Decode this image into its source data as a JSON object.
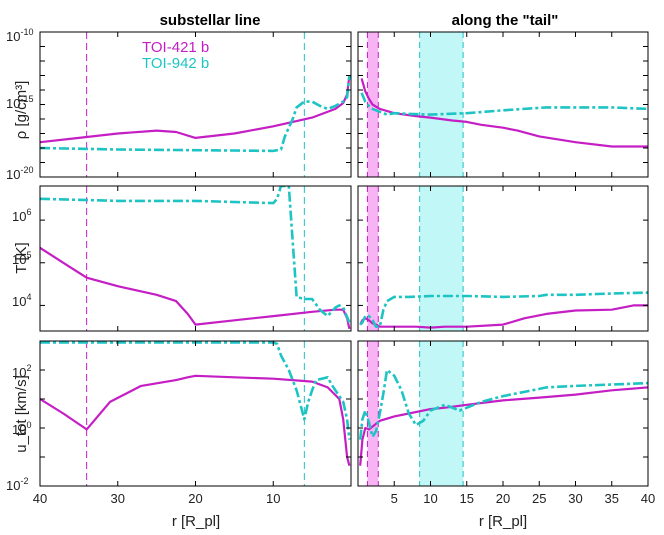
{
  "colors": {
    "toi421": "#c41ec4",
    "toi942": "#1ec4c4",
    "shade421": "#f7b3f4",
    "shade942": "#c2f7f7"
  },
  "titles": {
    "left": "substellar line",
    "right": "along the \"tail\""
  },
  "ylabels": {
    "rho": "ρ [g/cm³]",
    "T": "T [K]",
    "u": "u_tot [km/s]"
  },
  "xlabel": "r [R_pl]",
  "legend": [
    {
      "name": "TOI-421 b"
    },
    {
      "name": "TOI-942 b"
    }
  ],
  "ticks": {
    "rho": [
      {
        "base": "10",
        "exp": "-10"
      },
      {
        "base": "10",
        "exp": "-15"
      },
      {
        "base": "10",
        "exp": "-20"
      }
    ],
    "T": [
      {
        "base": "10",
        "exp": "6"
      },
      {
        "base": "10",
        "exp": "5"
      },
      {
        "base": "10",
        "exp": "4"
      }
    ],
    "u": [
      {
        "base": "10",
        "exp": "2"
      },
      {
        "base": "10",
        "exp": "0"
      },
      {
        "base": "10",
        "exp": "-2"
      }
    ],
    "left_x": [
      "40",
      "30",
      "20",
      "10"
    ],
    "right_x": [
      "5",
      "10",
      "15",
      "20",
      "25",
      "30",
      "35",
      "40"
    ]
  },
  "chart_data": [
    {
      "type": "line",
      "panel": "substellar line / density",
      "xlabel": "r [R_pl]",
      "ylabel": "ρ [g/cm³]",
      "xlim": [
        40,
        0
      ],
      "ylim_log10": [
        -20,
        -10
      ],
      "vlines": {
        "TOI-421 b": 34,
        "TOI-942 b": 6
      },
      "series": [
        {
          "name": "TOI-421 b",
          "x": [
            40,
            35,
            30,
            25,
            22.5,
            20,
            15,
            10,
            5,
            2,
            1,
            0.5,
            0.2
          ],
          "log10y": [
            -17.6,
            -17.3,
            -17.0,
            -16.8,
            -16.9,
            -17.3,
            -17.0,
            -16.5,
            -15.9,
            -15.3,
            -14.9,
            -14.3,
            -13.0
          ]
        },
        {
          "name": "TOI-942 b",
          "x": [
            40,
            30,
            20,
            10,
            9,
            8.5,
            7.5,
            7,
            6,
            5,
            4,
            3,
            2,
            1,
            0.5,
            0.2
          ],
          "log10y": [
            -18.0,
            -18.1,
            -18.15,
            -18.2,
            -18.1,
            -17.2,
            -16.0,
            -15.2,
            -14.8,
            -14.8,
            -15.1,
            -15.3,
            -15.1,
            -14.8,
            -14.5,
            -13.0
          ]
        }
      ]
    },
    {
      "type": "line",
      "panel": "substellar line / temperature",
      "ylabel": "T [K]",
      "xlim": [
        40,
        0
      ],
      "ylim_log10": [
        3.4,
        6.8
      ],
      "series": [
        {
          "name": "TOI-421 b",
          "x": [
            40,
            37,
            34,
            30,
            25,
            22.5,
            21,
            20,
            15,
            10,
            5,
            2,
            1,
            0.5,
            0.2
          ],
          "log10y": [
            5.35,
            5.0,
            4.65,
            4.45,
            4.25,
            4.1,
            3.8,
            3.55,
            3.65,
            3.75,
            3.85,
            3.9,
            3.9,
            3.7,
            3.45
          ]
        },
        {
          "name": "TOI-942 b",
          "x": [
            40,
            30,
            20,
            10,
            9.5,
            9,
            8,
            7,
            6,
            5,
            4,
            3,
            2,
            1.5,
            1,
            0.2
          ],
          "log10y": [
            6.5,
            6.45,
            6.45,
            6.4,
            6.5,
            6.8,
            6.8,
            4.2,
            4.15,
            4.15,
            3.9,
            3.75,
            3.95,
            4.0,
            3.95,
            3.6
          ]
        }
      ]
    },
    {
      "type": "line",
      "panel": "substellar line / velocity",
      "ylabel": "u_tot [km/s]",
      "xlim": [
        40,
        0
      ],
      "ylim_log10": [
        -2,
        3
      ],
      "series": [
        {
          "name": "TOI-421 b",
          "x": [
            40,
            37,
            34,
            31,
            27,
            22.5,
            21,
            20,
            15,
            10,
            5,
            3,
            1.5,
            1,
            0.5,
            0.2
          ],
          "log10y": [
            1.0,
            0.5,
            -0.05,
            0.9,
            1.45,
            1.65,
            1.75,
            1.8,
            1.75,
            1.7,
            1.6,
            1.4,
            1.0,
            0.3,
            -1.0,
            -1.3
          ]
        },
        {
          "name": "TOI-942 b",
          "x": [
            40,
            20,
            10,
            9.5,
            9,
            8,
            7,
            6.5,
            6,
            5.5,
            5,
            4.5,
            3,
            2.5,
            2,
            1,
            0.5,
            0.2
          ],
          "log10y": [
            2.95,
            2.95,
            2.95,
            2.9,
            2.5,
            2.0,
            1.3,
            0.8,
            0.3,
            0.9,
            1.3,
            1.65,
            1.75,
            1.5,
            1.3,
            0.9,
            0.3,
            -0.4
          ]
        }
      ]
    },
    {
      "type": "line",
      "panel": "tail / density",
      "xlabel": "r [R_pl]",
      "xlim": [
        0,
        40
      ],
      "ylim_log10": [
        -20,
        -10
      ],
      "shaded": {
        "TOI-421 b": [
          1.3,
          2.8
        ],
        "TOI-942 b": [
          8.5,
          14.5
        ]
      },
      "series": [
        {
          "name": "TOI-421 b",
          "x": [
            0.5,
            1,
            1.5,
            2,
            3,
            5,
            8,
            10,
            13,
            15,
            17,
            20,
            22,
            25,
            30,
            35,
            40
          ],
          "log10y": [
            -13.2,
            -14.1,
            -14.6,
            -15.0,
            -15.3,
            -15.6,
            -15.8,
            -15.9,
            -16.1,
            -16.2,
            -16.4,
            -16.6,
            -16.8,
            -17.2,
            -17.6,
            -17.9,
            -17.9
          ]
        },
        {
          "name": "TOI-942 b",
          "x": [
            0.5,
            1,
            1.5,
            2,
            3,
            4,
            5,
            7,
            10,
            15,
            20,
            26,
            30,
            35,
            40
          ],
          "log10y": [
            -14.2,
            -14.8,
            -15.1,
            -15.3,
            -15.5,
            -15.7,
            -15.6,
            -15.65,
            -15.7,
            -15.6,
            -15.4,
            -15.2,
            -15.2,
            -15.2,
            -15.3
          ]
        }
      ]
    },
    {
      "type": "line",
      "panel": "tail / temperature",
      "xlim": [
        0,
        40
      ],
      "ylim_log10": [
        3.4,
        6.8
      ],
      "series": [
        {
          "name": "TOI-421 b",
          "x": [
            0.3,
            0.6,
            1,
            1.5,
            2,
            2.5,
            3,
            5,
            8,
            10,
            12,
            15,
            20,
            21,
            22,
            23,
            26,
            30,
            35,
            38,
            40
          ],
          "log10y": [
            3.55,
            3.65,
            3.7,
            3.65,
            3.58,
            3.55,
            3.5,
            3.5,
            3.5,
            3.48,
            3.5,
            3.5,
            3.55,
            3.6,
            3.65,
            3.7,
            3.8,
            3.88,
            3.9,
            4.0,
            4.0
          ]
        },
        {
          "name": "TOI-942 b",
          "x": [
            0.3,
            0.6,
            1,
            1.5,
            2,
            2.5,
            3,
            3.5,
            4,
            5,
            7,
            10,
            15,
            20,
            25,
            26,
            30,
            35,
            40
          ],
          "log10y": [
            3.55,
            3.6,
            3.75,
            3.75,
            3.65,
            3.5,
            3.5,
            3.9,
            4.1,
            4.2,
            4.2,
            4.22,
            4.22,
            4.2,
            4.22,
            4.25,
            4.25,
            4.28,
            4.3
          ]
        }
      ]
    },
    {
      "type": "line",
      "panel": "tail / velocity",
      "xlim": [
        0,
        40
      ],
      "ylim_log10": [
        -2,
        3
      ],
      "series": [
        {
          "name": "TOI-421 b",
          "x": [
            0.3,
            0.6,
            1,
            1.5,
            2,
            3,
            5,
            7,
            10,
            12,
            15,
            20,
            25,
            30,
            35,
            40
          ],
          "log10y": [
            -1.3,
            -0.4,
            0.0,
            -0.05,
            0.05,
            0.25,
            0.4,
            0.5,
            0.65,
            0.7,
            0.8,
            0.95,
            1.05,
            1.15,
            1.3,
            1.4
          ]
        },
        {
          "name": "TOI-942 b",
          "x": [
            0.3,
            0.6,
            1,
            1.5,
            2,
            2.5,
            3,
            3.5,
            4,
            5,
            6,
            7,
            8,
            9,
            10,
            12,
            14,
            15,
            17,
            20,
            25,
            26,
            30,
            35,
            40
          ],
          "log10y": [
            -0.4,
            0.3,
            0.6,
            0.2,
            -0.3,
            -0.1,
            0.5,
            1.2,
            2.0,
            1.8,
            1.3,
            0.5,
            0.1,
            0.25,
            0.6,
            0.8,
            0.6,
            0.7,
            0.9,
            1.1,
            1.35,
            1.4,
            1.45,
            1.5,
            1.55
          ]
        }
      ]
    }
  ]
}
